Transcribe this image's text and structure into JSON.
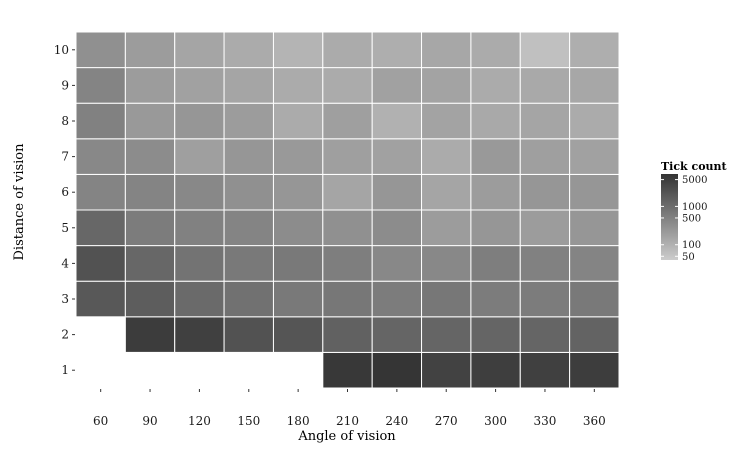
{
  "chart_data": {
    "type": "heatmap",
    "title": "",
    "xlabel": "Angle of vision",
    "ylabel": "Distance of vision",
    "x_categories": [
      "60",
      "90",
      "120",
      "150",
      "180",
      "210",
      "240",
      "270",
      "300",
      "330",
      "360"
    ],
    "y_categories": [
      "1",
      "2",
      "3",
      "4",
      "5",
      "6",
      "7",
      "8",
      "9",
      "10"
    ],
    "scale": "log",
    "legend": {
      "title": "Tick count",
      "placement": "right",
      "breaks": [
        50,
        100,
        500,
        1000,
        5000
      ],
      "labels": [
        "50",
        "100",
        "500",
        "1000",
        "5000"
      ],
      "limits": [
        40,
        7000
      ],
      "low_color": "#cccccc",
      "high_color": "#333333"
    },
    "grid": false,
    "cells": [
      [
        null,
        null,
        null,
        null,
        null,
        6000,
        6500,
        4200,
        4800,
        4500,
        5000
      ],
      [
        null,
        5200,
        4500,
        2500,
        2200,
        1500,
        1300,
        1300,
        1300,
        1300,
        1400
      ],
      [
        2000,
        1700,
        1100,
        850,
        650,
        700,
        600,
        700,
        600,
        600,
        650
      ],
      [
        2500,
        1200,
        800,
        650,
        650,
        550,
        400,
        400,
        550,
        500,
        450
      ],
      [
        1200,
        600,
        500,
        450,
        350,
        300,
        350,
        200,
        250,
        200,
        250
      ],
      [
        450,
        450,
        400,
        300,
        250,
        150,
        250,
        150,
        200,
        250,
        250
      ],
      [
        400,
        350,
        180,
        250,
        220,
        180,
        170,
        120,
        220,
        180,
        170
      ],
      [
        500,
        220,
        250,
        200,
        120,
        180,
        100,
        160,
        130,
        150,
        120
      ],
      [
        450,
        200,
        170,
        150,
        120,
        120,
        170,
        160,
        120,
        130,
        140
      ],
      [
        300,
        200,
        150,
        120,
        90,
        120,
        110,
        140,
        120,
        60,
        110
      ]
    ]
  }
}
